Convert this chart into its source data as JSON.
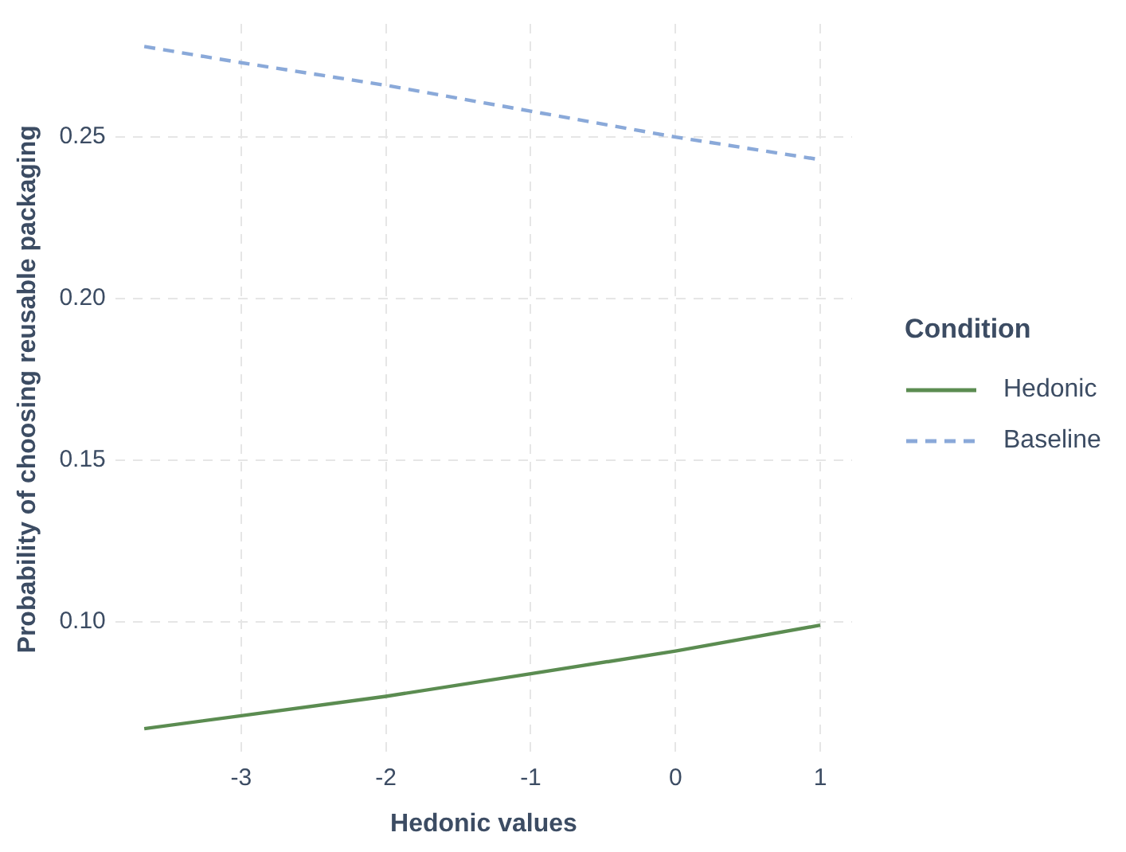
{
  "chart_data": {
    "type": "line",
    "xlabel": "Hedonic values",
    "ylabel": "Probability of choosing reusable packaging",
    "legend_title": "Condition",
    "legend": "right",
    "grid": true,
    "marker": "none",
    "xlim": [
      -3.87,
      1.22
    ],
    "ylim": [
      0.059,
      0.285
    ],
    "xticks": [
      -3,
      -2,
      -1,
      0,
      1
    ],
    "yticks": [
      {
        "value": 0.1,
        "label": "0.10"
      },
      0.15,
      {
        "value": 0.2,
        "label": "0.20"
      },
      0.25
    ],
    "series": [
      {
        "name": "Hedonic",
        "color": "#5b8c51",
        "line_style": "solid",
        "x": [
          -3.67,
          -3,
          -2,
          -1,
          0,
          1
        ],
        "values": [
          0.067,
          0.071,
          0.077,
          0.084,
          0.091,
          0.099
        ]
      },
      {
        "name": "Baseline",
        "color": "#8aa9d9",
        "line_style": "dashed",
        "x": [
          -3.67,
          -3,
          -2,
          -1,
          0,
          1
        ],
        "values": [
          0.278,
          0.273,
          0.266,
          0.258,
          0.25,
          0.243
        ]
      }
    ]
  }
}
